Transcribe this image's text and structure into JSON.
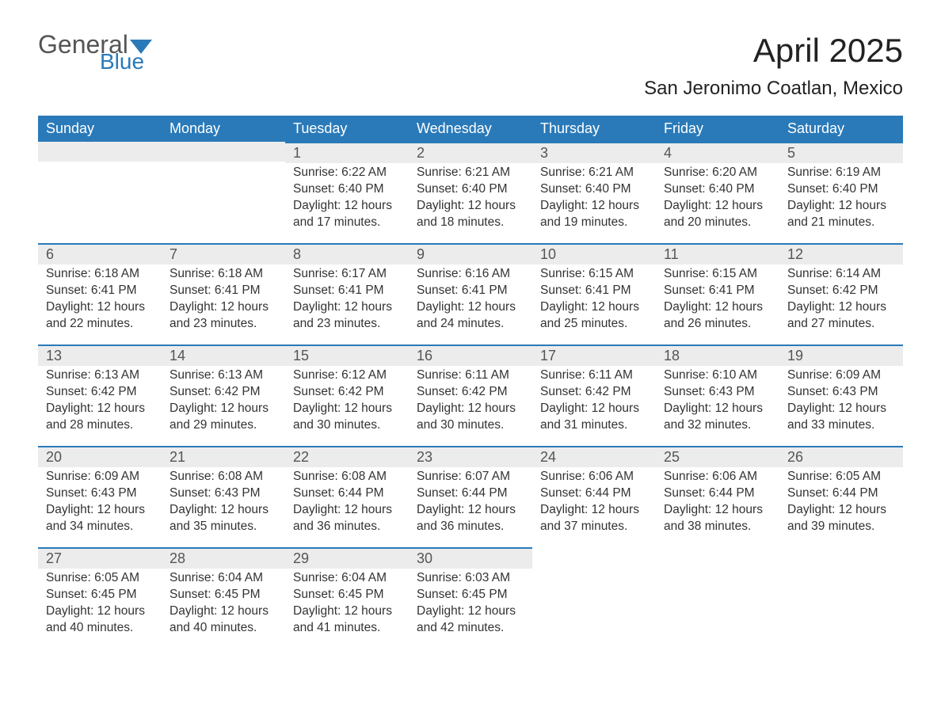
{
  "brand": {
    "word1": "General",
    "word2": "Blue",
    "shape_color": "#2a7ab9"
  },
  "title": "April 2025",
  "location": "San Jeronimo Coatlan, Mexico",
  "colors": {
    "header_bg": "#2a7ab9",
    "header_text": "#ffffff",
    "daynum_bg": "#ececec",
    "rule": "#2a7ab9",
    "body_text": "#333333"
  },
  "day_headers": [
    "Sunday",
    "Monday",
    "Tuesday",
    "Wednesday",
    "Thursday",
    "Friday",
    "Saturday"
  ],
  "weeks": [
    [
      null,
      null,
      {
        "n": "1",
        "sunrise": "6:22 AM",
        "sunset": "6:40 PM",
        "daylight": "12 hours and 17 minutes."
      },
      {
        "n": "2",
        "sunrise": "6:21 AM",
        "sunset": "6:40 PM",
        "daylight": "12 hours and 18 minutes."
      },
      {
        "n": "3",
        "sunrise": "6:21 AM",
        "sunset": "6:40 PM",
        "daylight": "12 hours and 19 minutes."
      },
      {
        "n": "4",
        "sunrise": "6:20 AM",
        "sunset": "6:40 PM",
        "daylight": "12 hours and 20 minutes."
      },
      {
        "n": "5",
        "sunrise": "6:19 AM",
        "sunset": "6:40 PM",
        "daylight": "12 hours and 21 minutes."
      }
    ],
    [
      {
        "n": "6",
        "sunrise": "6:18 AM",
        "sunset": "6:41 PM",
        "daylight": "12 hours and 22 minutes."
      },
      {
        "n": "7",
        "sunrise": "6:18 AM",
        "sunset": "6:41 PM",
        "daylight": "12 hours and 23 minutes."
      },
      {
        "n": "8",
        "sunrise": "6:17 AM",
        "sunset": "6:41 PM",
        "daylight": "12 hours and 23 minutes."
      },
      {
        "n": "9",
        "sunrise": "6:16 AM",
        "sunset": "6:41 PM",
        "daylight": "12 hours and 24 minutes."
      },
      {
        "n": "10",
        "sunrise": "6:15 AM",
        "sunset": "6:41 PM",
        "daylight": "12 hours and 25 minutes."
      },
      {
        "n": "11",
        "sunrise": "6:15 AM",
        "sunset": "6:41 PM",
        "daylight": "12 hours and 26 minutes."
      },
      {
        "n": "12",
        "sunrise": "6:14 AM",
        "sunset": "6:42 PM",
        "daylight": "12 hours and 27 minutes."
      }
    ],
    [
      {
        "n": "13",
        "sunrise": "6:13 AM",
        "sunset": "6:42 PM",
        "daylight": "12 hours and 28 minutes."
      },
      {
        "n": "14",
        "sunrise": "6:13 AM",
        "sunset": "6:42 PM",
        "daylight": "12 hours and 29 minutes."
      },
      {
        "n": "15",
        "sunrise": "6:12 AM",
        "sunset": "6:42 PM",
        "daylight": "12 hours and 30 minutes."
      },
      {
        "n": "16",
        "sunrise": "6:11 AM",
        "sunset": "6:42 PM",
        "daylight": "12 hours and 30 minutes."
      },
      {
        "n": "17",
        "sunrise": "6:11 AM",
        "sunset": "6:42 PM",
        "daylight": "12 hours and 31 minutes."
      },
      {
        "n": "18",
        "sunrise": "6:10 AM",
        "sunset": "6:43 PM",
        "daylight": "12 hours and 32 minutes."
      },
      {
        "n": "19",
        "sunrise": "6:09 AM",
        "sunset": "6:43 PM",
        "daylight": "12 hours and 33 minutes."
      }
    ],
    [
      {
        "n": "20",
        "sunrise": "6:09 AM",
        "sunset": "6:43 PM",
        "daylight": "12 hours and 34 minutes."
      },
      {
        "n": "21",
        "sunrise": "6:08 AM",
        "sunset": "6:43 PM",
        "daylight": "12 hours and 35 minutes."
      },
      {
        "n": "22",
        "sunrise": "6:08 AM",
        "sunset": "6:44 PM",
        "daylight": "12 hours and 36 minutes."
      },
      {
        "n": "23",
        "sunrise": "6:07 AM",
        "sunset": "6:44 PM",
        "daylight": "12 hours and 36 minutes."
      },
      {
        "n": "24",
        "sunrise": "6:06 AM",
        "sunset": "6:44 PM",
        "daylight": "12 hours and 37 minutes."
      },
      {
        "n": "25",
        "sunrise": "6:06 AM",
        "sunset": "6:44 PM",
        "daylight": "12 hours and 38 minutes."
      },
      {
        "n": "26",
        "sunrise": "6:05 AM",
        "sunset": "6:44 PM",
        "daylight": "12 hours and 39 minutes."
      }
    ],
    [
      {
        "n": "27",
        "sunrise": "6:05 AM",
        "sunset": "6:45 PM",
        "daylight": "12 hours and 40 minutes."
      },
      {
        "n": "28",
        "sunrise": "6:04 AM",
        "sunset": "6:45 PM",
        "daylight": "12 hours and 40 minutes."
      },
      {
        "n": "29",
        "sunrise": "6:04 AM",
        "sunset": "6:45 PM",
        "daylight": "12 hours and 41 minutes."
      },
      {
        "n": "30",
        "sunrise": "6:03 AM",
        "sunset": "6:45 PM",
        "daylight": "12 hours and 42 minutes."
      },
      null,
      null,
      null
    ]
  ],
  "labels": {
    "sunrise": "Sunrise: ",
    "sunset": "Sunset: ",
    "daylight": "Daylight: "
  }
}
